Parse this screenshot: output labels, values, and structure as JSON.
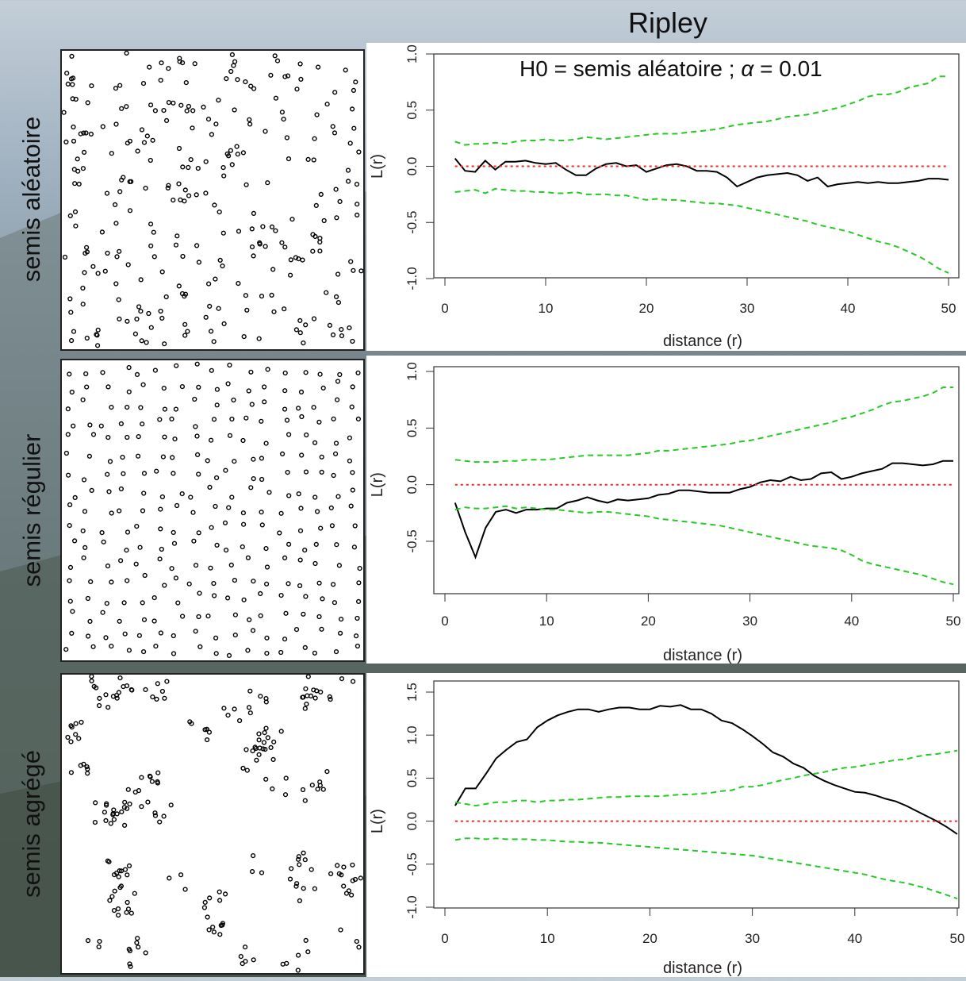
{
  "page": {
    "title": "Ripley",
    "annotation_prefix": "H0 = semis aléatoire ; ",
    "annotation_symbol": "α",
    "annotation_suffix": " = 0.01"
  },
  "rows": [
    {
      "label": "semis aléatoire"
    },
    {
      "label": "semis régulier"
    },
    {
      "label": "semis agrégé"
    }
  ],
  "colors": {
    "observed": "#000000",
    "envelope": "#22cc22",
    "theoretical": "#ff2222"
  },
  "chart_data": [
    {
      "type": "line",
      "xlabel": "distance (r)",
      "ylabel": "L(r)",
      "xlim": [
        0,
        50
      ],
      "ylim": [
        -1.0,
        1.0
      ],
      "xticks": [
        0,
        10,
        20,
        30,
        40,
        50
      ],
      "yticks": [
        -1.0,
        -0.5,
        0.0,
        0.5,
        1.0
      ],
      "ytick_labels": [
        "-1.0",
        "-0.5",
        "0.0",
        "0.5",
        "1.0"
      ],
      "x": [
        1,
        2,
        3,
        4,
        5,
        6,
        7,
        8,
        9,
        10,
        11,
        12,
        13,
        14,
        15,
        16,
        17,
        18,
        19,
        20,
        21,
        22,
        23,
        24,
        25,
        26,
        27,
        28,
        29,
        30,
        31,
        32,
        33,
        34,
        35,
        36,
        37,
        38,
        39,
        40,
        41,
        42,
        43,
        44,
        45,
        46,
        47,
        48,
        49,
        50
      ],
      "series": [
        {
          "role": "observed",
          "values": [
            0.07,
            -0.04,
            -0.05,
            0.05,
            -0.03,
            0.04,
            0.04,
            0.05,
            0.03,
            0.02,
            0.03,
            -0.03,
            -0.08,
            -0.08,
            -0.02,
            0.02,
            0.03,
            0.0,
            0.01,
            -0.05,
            -0.02,
            0.01,
            0.02,
            0.0,
            -0.04,
            -0.04,
            -0.05,
            -0.1,
            -0.18,
            -0.14,
            -0.1,
            -0.08,
            -0.07,
            -0.06,
            -0.08,
            -0.13,
            -0.1,
            -0.18,
            -0.16,
            -0.15,
            -0.14,
            -0.15,
            -0.14,
            -0.15,
            -0.15,
            -0.14,
            -0.13,
            -0.11,
            -0.11,
            -0.12
          ]
        },
        {
          "role": "upper",
          "values": [
            0.22,
            0.19,
            0.2,
            0.2,
            0.21,
            0.2,
            0.22,
            0.23,
            0.23,
            0.24,
            0.23,
            0.23,
            0.24,
            0.26,
            0.25,
            0.24,
            0.25,
            0.26,
            0.27,
            0.28,
            0.29,
            0.29,
            0.29,
            0.3,
            0.31,
            0.32,
            0.33,
            0.35,
            0.37,
            0.38,
            0.39,
            0.4,
            0.42,
            0.44,
            0.45,
            0.46,
            0.48,
            0.5,
            0.52,
            0.55,
            0.58,
            0.62,
            0.64,
            0.64,
            0.66,
            0.7,
            0.72,
            0.74,
            0.8,
            0.8
          ]
        },
        {
          "role": "lower",
          "values": [
            -0.23,
            -0.22,
            -0.21,
            -0.24,
            -0.2,
            -0.21,
            -0.22,
            -0.22,
            -0.23,
            -0.23,
            -0.24,
            -0.24,
            -0.23,
            -0.25,
            -0.25,
            -0.25,
            -0.26,
            -0.26,
            -0.28,
            -0.3,
            -0.29,
            -0.3,
            -0.3,
            -0.31,
            -0.32,
            -0.33,
            -0.33,
            -0.34,
            -0.35,
            -0.37,
            -0.39,
            -0.41,
            -0.43,
            -0.45,
            -0.47,
            -0.49,
            -0.52,
            -0.54,
            -0.56,
            -0.58,
            -0.61,
            -0.64,
            -0.67,
            -0.69,
            -0.72,
            -0.76,
            -0.8,
            -0.85,
            -0.91,
            -0.95
          ]
        },
        {
          "role": "theoretical",
          "values": [
            0,
            0,
            0,
            0,
            0,
            0,
            0,
            0,
            0,
            0,
            0,
            0,
            0,
            0,
            0,
            0,
            0,
            0,
            0,
            0,
            0,
            0,
            0,
            0,
            0,
            0,
            0,
            0,
            0,
            0,
            0,
            0,
            0,
            0,
            0,
            0,
            0,
            0,
            0,
            0,
            0,
            0,
            0,
            0,
            0,
            0,
            0,
            0,
            0,
            0
          ]
        }
      ]
    },
    {
      "type": "line",
      "xlabel": "distance (r)",
      "ylabel": "L(r)",
      "xlim": [
        0,
        50
      ],
      "ylim": [
        -0.95,
        1.0
      ],
      "xticks": [
        0,
        10,
        20,
        30,
        40,
        50
      ],
      "yticks": [
        -0.5,
        0.0,
        0.5,
        1.0
      ],
      "ytick_labels": [
        "-0.5",
        "0.0",
        "0.5",
        "1.0"
      ],
      "x": [
        1,
        2,
        3,
        4,
        5,
        6,
        7,
        8,
        9,
        10,
        11,
        12,
        13,
        14,
        15,
        16,
        17,
        18,
        19,
        20,
        21,
        22,
        23,
        24,
        25,
        26,
        27,
        28,
        29,
        30,
        31,
        32,
        33,
        34,
        35,
        36,
        37,
        38,
        39,
        40,
        41,
        42,
        43,
        44,
        45,
        46,
        47,
        48,
        49,
        50
      ],
      "series": [
        {
          "role": "observed",
          "values": [
            -0.16,
            -0.42,
            -0.64,
            -0.38,
            -0.24,
            -0.22,
            -0.25,
            -0.22,
            -0.22,
            -0.21,
            -0.21,
            -0.16,
            -0.14,
            -0.11,
            -0.14,
            -0.16,
            -0.13,
            -0.14,
            -0.13,
            -0.12,
            -0.09,
            -0.08,
            -0.05,
            -0.05,
            -0.06,
            -0.07,
            -0.07,
            -0.07,
            -0.04,
            -0.02,
            0.02,
            0.04,
            0.03,
            0.07,
            0.04,
            0.05,
            0.1,
            0.11,
            0.05,
            0.07,
            0.1,
            0.12,
            0.14,
            0.19,
            0.19,
            0.18,
            0.17,
            0.18,
            0.21,
            0.21
          ]
        },
        {
          "role": "upper",
          "values": [
            0.22,
            0.21,
            0.2,
            0.2,
            0.2,
            0.21,
            0.21,
            0.22,
            0.22,
            0.22,
            0.23,
            0.24,
            0.25,
            0.26,
            0.26,
            0.26,
            0.26,
            0.26,
            0.27,
            0.28,
            0.3,
            0.3,
            0.31,
            0.32,
            0.33,
            0.34,
            0.35,
            0.36,
            0.38,
            0.39,
            0.41,
            0.43,
            0.45,
            0.47,
            0.49,
            0.51,
            0.53,
            0.55,
            0.58,
            0.6,
            0.63,
            0.66,
            0.7,
            0.73,
            0.74,
            0.76,
            0.78,
            0.81,
            0.86,
            0.86
          ]
        },
        {
          "role": "lower",
          "values": [
            -0.22,
            -0.2,
            -0.21,
            -0.21,
            -0.2,
            -0.19,
            -0.21,
            -0.2,
            -0.21,
            -0.22,
            -0.22,
            -0.23,
            -0.24,
            -0.25,
            -0.24,
            -0.24,
            -0.25,
            -0.26,
            -0.27,
            -0.28,
            -0.3,
            -0.31,
            -0.32,
            -0.33,
            -0.34,
            -0.35,
            -0.36,
            -0.38,
            -0.4,
            -0.42,
            -0.44,
            -0.46,
            -0.48,
            -0.5,
            -0.52,
            -0.54,
            -0.55,
            -0.56,
            -0.58,
            -0.62,
            -0.67,
            -0.7,
            -0.72,
            -0.74,
            -0.76,
            -0.78,
            -0.8,
            -0.83,
            -0.86,
            -0.88
          ]
        },
        {
          "role": "theoretical",
          "values": [
            0,
            0,
            0,
            0,
            0,
            0,
            0,
            0,
            0,
            0,
            0,
            0,
            0,
            0,
            0,
            0,
            0,
            0,
            0,
            0,
            0,
            0,
            0,
            0,
            0,
            0,
            0,
            0,
            0,
            0,
            0,
            0,
            0,
            0,
            0,
            0,
            0,
            0,
            0,
            0,
            0,
            0,
            0,
            0,
            0,
            0,
            0,
            0,
            0,
            0
          ]
        }
      ]
    },
    {
      "type": "line",
      "xlabel": "distance (r)",
      "ylabel": "L(r)",
      "xlim": [
        0,
        50
      ],
      "ylim": [
        -1.0,
        1.5
      ],
      "xticks": [
        0,
        10,
        20,
        30,
        40,
        50
      ],
      "yticks": [
        -1.0,
        -0.5,
        0.0,
        0.5,
        1.0,
        1.5
      ],
      "ytick_labels": [
        "-1.0",
        "-0.5",
        "0.0",
        "0.5",
        "1.0",
        "1.5"
      ],
      "x": [
        1,
        2,
        3,
        4,
        5,
        6,
        7,
        8,
        9,
        10,
        11,
        12,
        13,
        14,
        15,
        16,
        17,
        18,
        19,
        20,
        21,
        22,
        23,
        24,
        25,
        26,
        27,
        28,
        29,
        30,
        31,
        32,
        33,
        34,
        35,
        36,
        37,
        38,
        39,
        40,
        41,
        42,
        43,
        44,
        45,
        46,
        47,
        48,
        49,
        50
      ],
      "series": [
        {
          "role": "observed",
          "values": [
            0.18,
            0.38,
            0.38,
            0.55,
            0.73,
            0.83,
            0.92,
            0.95,
            1.09,
            1.17,
            1.23,
            1.27,
            1.3,
            1.3,
            1.27,
            1.3,
            1.32,
            1.32,
            1.3,
            1.3,
            1.34,
            1.33,
            1.35,
            1.3,
            1.3,
            1.25,
            1.17,
            1.14,
            1.07,
            0.99,
            0.9,
            0.8,
            0.75,
            0.67,
            0.62,
            0.53,
            0.47,
            0.42,
            0.38,
            0.34,
            0.33,
            0.3,
            0.26,
            0.23,
            0.18,
            0.12,
            0.06,
            0.0,
            -0.07,
            -0.15
          ]
        },
        {
          "role": "upper",
          "values": [
            0.22,
            0.2,
            0.18,
            0.2,
            0.22,
            0.22,
            0.24,
            0.24,
            0.22,
            0.24,
            0.24,
            0.25,
            0.25,
            0.26,
            0.27,
            0.28,
            0.28,
            0.29,
            0.29,
            0.29,
            0.29,
            0.3,
            0.31,
            0.31,
            0.32,
            0.33,
            0.35,
            0.36,
            0.4,
            0.4,
            0.42,
            0.45,
            0.48,
            0.5,
            0.53,
            0.55,
            0.57,
            0.6,
            0.62,
            0.63,
            0.65,
            0.67,
            0.69,
            0.71,
            0.72,
            0.75,
            0.77,
            0.78,
            0.8,
            0.82
          ]
        },
        {
          "role": "lower",
          "values": [
            -0.22,
            -0.2,
            -0.2,
            -0.21,
            -0.2,
            -0.21,
            -0.21,
            -0.21,
            -0.22,
            -0.22,
            -0.23,
            -0.24,
            -0.24,
            -0.25,
            -0.25,
            -0.26,
            -0.27,
            -0.28,
            -0.29,
            -0.3,
            -0.31,
            -0.32,
            -0.33,
            -0.34,
            -0.35,
            -0.36,
            -0.37,
            -0.38,
            -0.39,
            -0.4,
            -0.42,
            -0.44,
            -0.46,
            -0.48,
            -0.5,
            -0.52,
            -0.54,
            -0.56,
            -0.58,
            -0.6,
            -0.62,
            -0.65,
            -0.68,
            -0.7,
            -0.72,
            -0.75,
            -0.78,
            -0.82,
            -0.86,
            -0.9
          ]
        },
        {
          "role": "theoretical",
          "values": [
            0,
            0,
            0,
            0,
            0,
            0,
            0,
            0,
            0,
            0,
            0,
            0,
            0,
            0,
            0,
            0,
            0,
            0,
            0,
            0,
            0,
            0,
            0,
            0,
            0,
            0,
            0,
            0,
            0,
            0,
            0,
            0,
            0,
            0,
            0,
            0,
            0,
            0,
            0,
            0,
            0,
            0,
            0,
            0,
            0,
            0,
            0,
            0,
            0,
            0
          ]
        }
      ]
    }
  ]
}
